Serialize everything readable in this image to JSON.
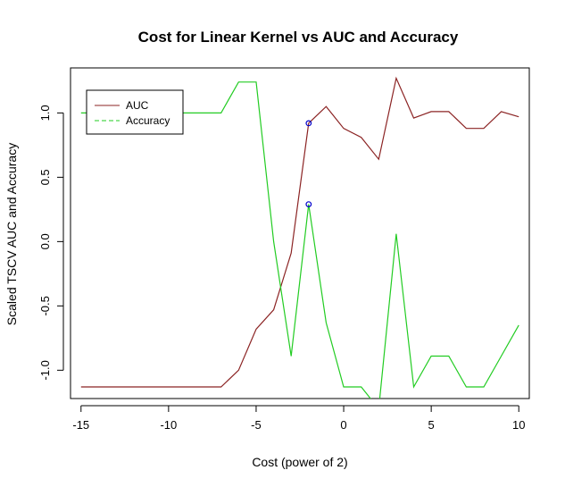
{
  "chart_data": {
    "type": "line",
    "title": "Cost for Linear Kernel vs AUC and Accuracy",
    "xlabel": "Cost (power of 2)",
    "ylabel": "Scaled TSCV AUC and Accuracy",
    "xlim": [
      -15.6,
      10.6
    ],
    "ylim": [
      -1.22,
      1.35
    ],
    "xticks": [
      -15,
      -10,
      -5,
      0,
      5,
      10
    ],
    "yticks": [
      -1.0,
      -0.5,
      0.0,
      0.5,
      1.0
    ],
    "xtick_labels": [
      "-15",
      "-10",
      "-5",
      "0",
      "5",
      "10"
    ],
    "ytick_labels": [
      "-1.0",
      "-0.5",
      "0.0",
      "0.5",
      "1.0"
    ],
    "legend": {
      "position": "top-left",
      "entries": [
        {
          "name": "AUC",
          "color": "#8B2323",
          "dash": "solid"
        },
        {
          "name": "Accuracy",
          "color": "#22CC22",
          "dash": "dashed"
        }
      ]
    },
    "series": [
      {
        "name": "AUC",
        "color": "#8B2323",
        "x": [
          -15,
          -14,
          -13,
          -12,
          -11,
          -10,
          -9,
          -8,
          -7,
          -6,
          -5,
          -4,
          -3,
          -2,
          -1,
          0,
          1,
          2,
          3,
          4,
          5,
          6,
          7,
          8,
          9,
          10
        ],
        "values": [
          -1.13,
          -1.13,
          -1.13,
          -1.13,
          -1.13,
          -1.13,
          -1.13,
          -1.13,
          -1.13,
          -1.0,
          -0.68,
          -0.53,
          -0.09,
          0.92,
          1.05,
          0.88,
          0.81,
          0.64,
          1.27,
          0.96,
          1.01,
          1.01,
          0.88,
          0.88,
          1.01,
          0.97
        ]
      },
      {
        "name": "Accuracy",
        "color": "#22CC22",
        "x": [
          -15,
          -14,
          -13,
          -12,
          -11,
          -10,
          -9,
          -8,
          -7,
          -6,
          -5,
          -4,
          -3,
          -2,
          -1,
          0,
          1,
          2,
          3,
          4,
          5,
          6,
          7,
          8,
          9,
          10
        ],
        "values": [
          1.0,
          1.0,
          1.0,
          1.0,
          1.0,
          1.0,
          1.0,
          1.0,
          1.0,
          1.24,
          1.24,
          0.0,
          -0.89,
          0.29,
          -0.63,
          -1.13,
          -1.13,
          -1.3,
          0.06,
          -1.13,
          -0.89,
          -0.89,
          -1.13,
          -1.13,
          -0.89,
          -0.65
        ]
      }
    ],
    "highlight_points": [
      {
        "x": -2,
        "y": 0.92,
        "color": "#0000CC"
      },
      {
        "x": -2,
        "y": 0.29,
        "color": "#0000CC"
      }
    ]
  }
}
